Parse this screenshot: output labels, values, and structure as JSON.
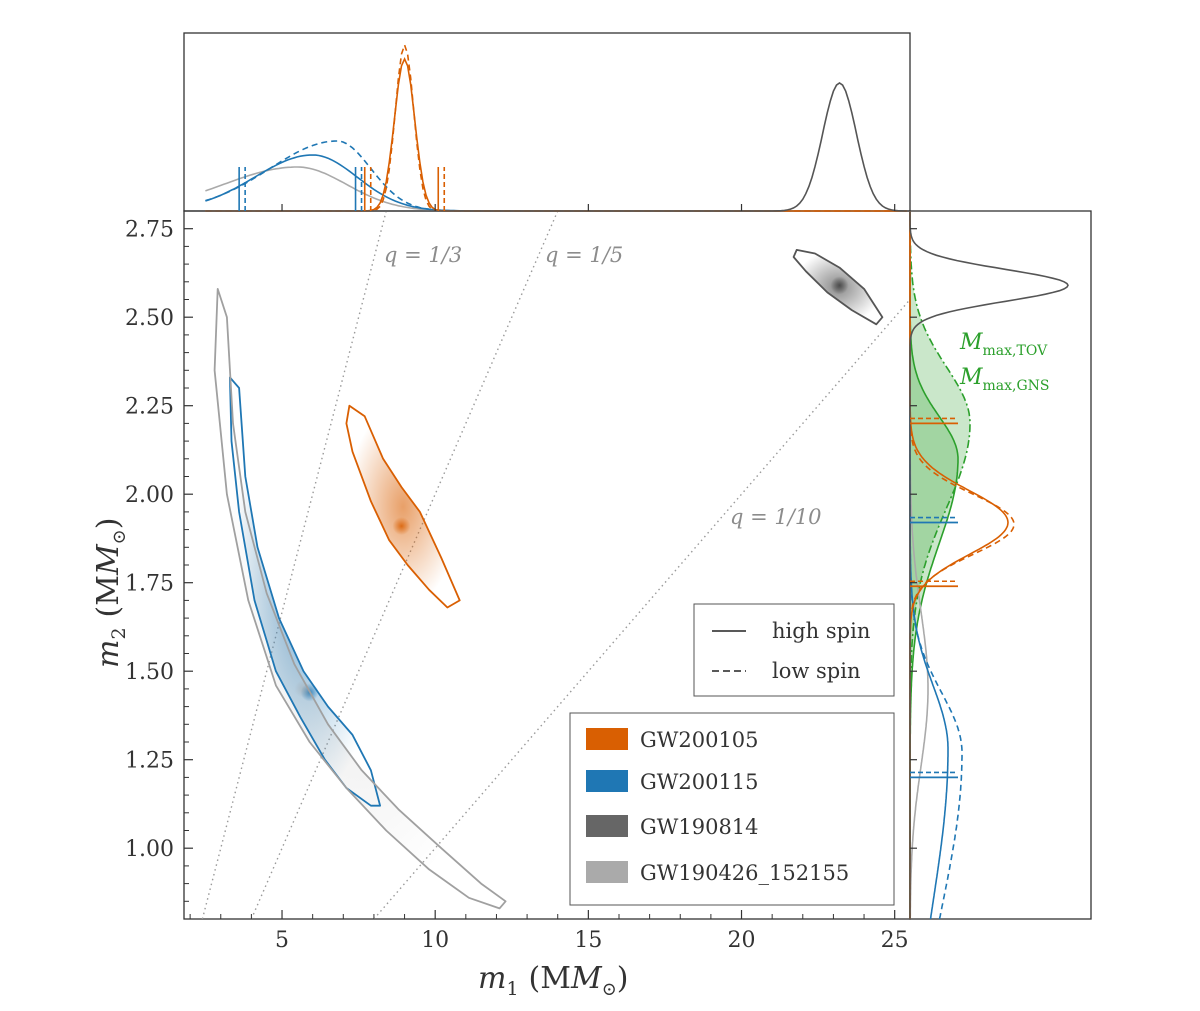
{
  "chart_data": {
    "type": "scatter",
    "xlabel": "m_1 (M_⊙)",
    "ylabel": "m_2 (M_⊙)",
    "xlim": [
      1.8,
      25.5
    ],
    "ylim": [
      0.8,
      2.8
    ],
    "xticks": [
      "5",
      "10",
      "15",
      "20",
      "25"
    ],
    "yticks": [
      "1.00",
      "1.25",
      "1.50",
      "1.75",
      "2.00",
      "2.25",
      "2.50",
      "2.75"
    ],
    "mass_ratio_lines": [
      {
        "label": "q = 1/3",
        "q": 0.3333
      },
      {
        "label": "q = 1/5",
        "q": 0.2
      },
      {
        "label": "q = 1/10",
        "q": 0.1
      }
    ],
    "series": [
      {
        "name": "GW200105",
        "color": "#d95f02",
        "m1_median": 8.9,
        "m2_median": 1.91,
        "contour": [
          [
            7.2,
            2.25
          ],
          [
            7.7,
            2.22
          ],
          [
            8.3,
            2.1
          ],
          [
            8.9,
            2.02
          ],
          [
            9.5,
            1.95
          ],
          [
            10.2,
            1.82
          ],
          [
            10.8,
            1.7
          ],
          [
            10.4,
            1.68
          ],
          [
            9.8,
            1.73
          ],
          [
            9.1,
            1.8
          ],
          [
            8.5,
            1.87
          ],
          [
            7.9,
            1.98
          ],
          [
            7.3,
            2.12
          ],
          [
            7.1,
            2.2
          ]
        ]
      },
      {
        "name": "GW200115",
        "color": "#1f77b4",
        "m1_median": 5.9,
        "m2_median": 1.44,
        "contour": [
          [
            3.3,
            2.33
          ],
          [
            3.6,
            2.3
          ],
          [
            3.8,
            2.05
          ],
          [
            4.2,
            1.85
          ],
          [
            4.9,
            1.65
          ],
          [
            5.7,
            1.5
          ],
          [
            6.5,
            1.4
          ],
          [
            7.3,
            1.32
          ],
          [
            7.9,
            1.22
          ],
          [
            8.2,
            1.12
          ],
          [
            7.9,
            1.12
          ],
          [
            7.1,
            1.17
          ],
          [
            6.4,
            1.25
          ],
          [
            5.6,
            1.37
          ],
          [
            4.8,
            1.5
          ],
          [
            4.1,
            1.7
          ],
          [
            3.6,
            1.95
          ],
          [
            3.35,
            2.15
          ]
        ]
      },
      {
        "name": "GW190814",
        "color": "#555555",
        "m1_median": 23.2,
        "m2_median": 2.59,
        "contour": [
          [
            21.8,
            2.69
          ],
          [
            22.4,
            2.68
          ],
          [
            23.2,
            2.64
          ],
          [
            24.0,
            2.58
          ],
          [
            24.6,
            2.5
          ],
          [
            24.4,
            2.48
          ],
          [
            23.6,
            2.52
          ],
          [
            22.8,
            2.57
          ],
          [
            22.1,
            2.63
          ],
          [
            21.7,
            2.67
          ]
        ]
      },
      {
        "name": "GW190426_152155",
        "color": "#a0a0a0",
        "m1_median": 5.7,
        "m2_median": 1.45,
        "contour": [
          [
            2.9,
            2.58
          ],
          [
            3.2,
            2.5
          ],
          [
            3.4,
            2.2
          ],
          [
            3.8,
            1.95
          ],
          [
            4.5,
            1.72
          ],
          [
            5.4,
            1.52
          ],
          [
            6.5,
            1.35
          ],
          [
            7.6,
            1.22
          ],
          [
            8.8,
            1.11
          ],
          [
            10.2,
            1.0
          ],
          [
            11.5,
            0.9
          ],
          [
            12.3,
            0.85
          ],
          [
            12.1,
            0.83
          ],
          [
            11.1,
            0.86
          ],
          [
            9.8,
            0.94
          ],
          [
            8.4,
            1.05
          ],
          [
            7.1,
            1.17
          ],
          [
            5.9,
            1.3
          ],
          [
            4.8,
            1.46
          ],
          [
            3.9,
            1.7
          ],
          [
            3.2,
            2.0
          ],
          [
            2.8,
            2.35
          ]
        ]
      }
    ],
    "top_marginal": {
      "GW200105": {
        "peak_m1": 9.0,
        "ci90": [
          7.7,
          10.1
        ]
      },
      "GW200115": {
        "peak_m1": 6.0,
        "ci90": [
          3.6,
          7.4
        ]
      },
      "GW190814": {
        "peak_m1": 23.2
      },
      "GW190426_152155": {
        "peak_m1": 5.5
      }
    },
    "right_marginal": {
      "GW200105": {
        "peak_m2": 1.92,
        "ci90": [
          1.74,
          2.2
        ]
      },
      "GW200115": {
        "peak_m2": 1.28,
        "ci90": [
          1.2,
          1.92
        ]
      },
      "GW190814": {
        "peak_m2": 2.59
      },
      "M_max_TOV": {
        "peak_m2": 2.1,
        "color": "#2ca02c"
      },
      "M_max_GNS": {
        "peak_m2": 2.2,
        "color": "#2ca02c"
      }
    },
    "legend_linestyles": [
      {
        "label": "high spin",
        "style": "solid"
      },
      {
        "label": "low spin",
        "style": "dashed"
      }
    ],
    "legend_placement": "bottom-right"
  },
  "labels": {
    "xlabel_main": "m",
    "xlabel_sub": "1",
    "xlabel_unit": "(M",
    "xlabel_unit_close": ")",
    "ylabel_main": "m",
    "ylabel_sub": "2",
    "ylabel_unit": "(M",
    "ylabel_unit_close": ")",
    "mmax_tov_main": "M",
    "mmax_tov_sub": "max,TOV",
    "mmax_gns_main": "M",
    "mmax_gns_sub": "max,GNS"
  }
}
